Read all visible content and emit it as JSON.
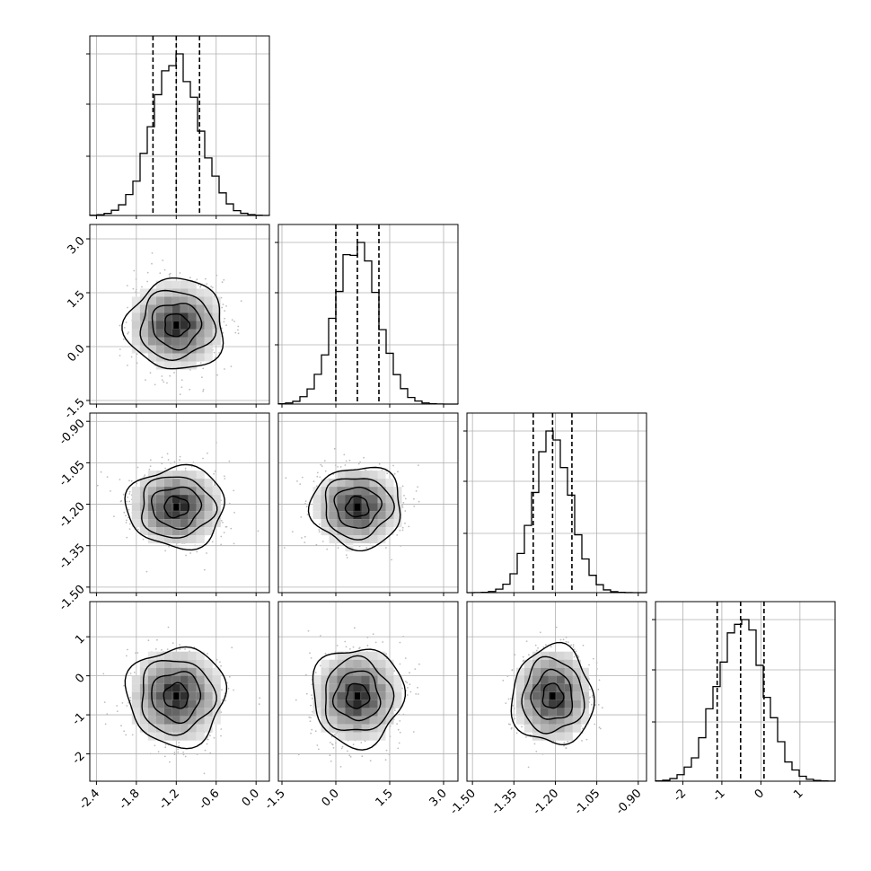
{
  "chart_data": {
    "type": "corner",
    "parameters": [
      {
        "range": [
          -2.5,
          0.2
        ],
        "ticks": [
          "-2.4",
          "-1.8",
          "-1.2",
          "-0.6",
          "0.0"
        ],
        "tick_values": [
          -2.4,
          -1.8,
          -1.2,
          -0.6,
          0.0
        ],
        "quantiles": [
          -1.55,
          -1.2,
          -0.85
        ],
        "mean": -1.2,
        "sd": 0.35
      },
      {
        "range": [
          -1.6,
          3.4
        ],
        "ticks": [
          "-1.5",
          "0.0",
          "1.5",
          "3.0"
        ],
        "tick_values": [
          -1.5,
          0.0,
          1.5,
          3.0
        ],
        "quantiles": [
          0.0,
          0.6,
          1.2
        ],
        "mean": 0.6,
        "sd": 0.6
      },
      {
        "range": [
          -1.52,
          -0.87
        ],
        "ticks": [
          "-1.50",
          "-1.35",
          "-1.20",
          "-1.05",
          "-0.90"
        ],
        "tick_values": [
          -1.5,
          -1.35,
          -1.2,
          -1.05,
          -0.9
        ],
        "quantiles": [
          -1.28,
          -1.21,
          -1.14
        ],
        "mean": -1.21,
        "sd": 0.07
      },
      {
        "range": [
          -2.7,
          1.9
        ],
        "ticks": [
          "-2",
          "-1",
          "0",
          "1"
        ],
        "tick_values": [
          -2,
          -1,
          0,
          1
        ],
        "quantiles": [
          -1.12,
          -0.52,
          0.08
        ],
        "mean": -0.52,
        "sd": 0.6
      }
    ],
    "contour_levels_sigma": [
      0.5,
      1.0,
      1.5,
      2.0
    ],
    "grid": true,
    "colors": {
      "hist": "#000000",
      "scatter": "#bdbdbd",
      "density": "#000000",
      "grid": "#b0b0b0"
    }
  }
}
